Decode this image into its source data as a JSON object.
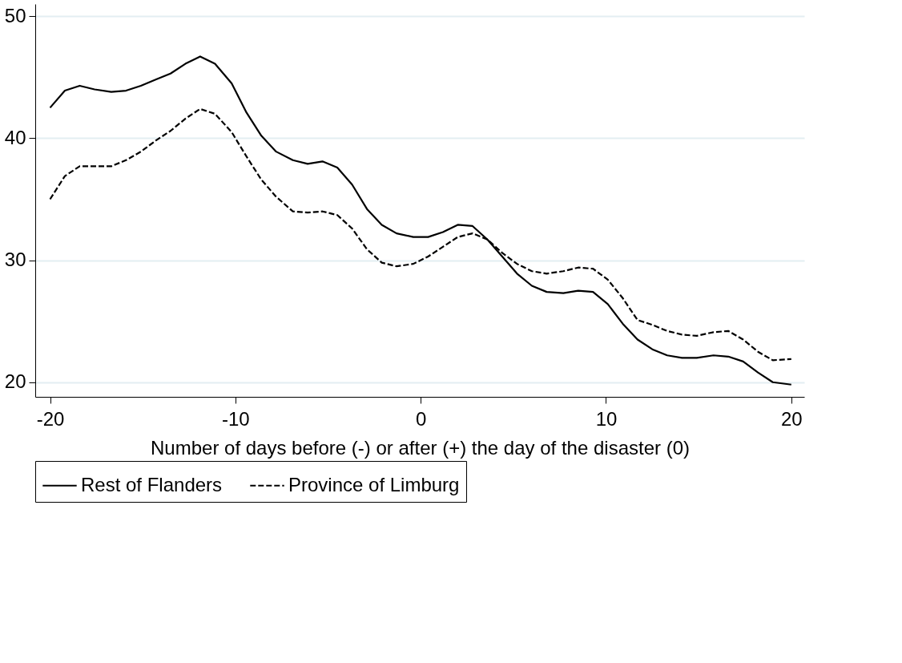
{
  "chart_data": {
    "type": "line",
    "xlabel": "Number of days before (-) or after (+) the day of the disaster (0)",
    "x": [
      -20,
      -19.2,
      -18.4,
      -17.6,
      -16.7,
      -15.9,
      -15.1,
      -14.3,
      -13.5,
      -12.7,
      -11.9,
      -11.1,
      -10.2,
      -9.4,
      -8.6,
      -7.8,
      -6.9,
      -6.1,
      -5.3,
      -4.5,
      -3.7,
      -2.9,
      -2.1,
      -1.3,
      -0.4,
      0.4,
      1.2,
      2.0,
      2.8,
      3.6,
      4.4,
      5.2,
      6.0,
      6.8,
      7.7,
      8.5,
      9.3,
      10.1,
      10.9,
      11.7,
      12.5,
      13.3,
      14.1,
      14.9,
      15.8,
      16.6,
      17.4,
      18.2,
      19.0,
      20
    ],
    "series": [
      {
        "name": "Rest of Flanders",
        "color": "#000000",
        "line_style": "solid",
        "values": [
          42.5,
          43.9,
          44.3,
          44.0,
          43.8,
          43.9,
          44.3,
          44.8,
          45.3,
          46.1,
          46.7,
          46.1,
          44.5,
          42.1,
          40.2,
          38.9,
          38.2,
          37.9,
          38.1,
          37.6,
          36.2,
          34.2,
          32.9,
          32.2,
          31.9,
          31.9,
          32.3,
          32.9,
          32.8,
          31.7,
          30.3,
          28.9,
          27.9,
          27.4,
          27.3,
          27.5,
          27.4,
          26.4,
          24.8,
          23.5,
          22.7,
          22.2,
          22.0,
          22.0,
          22.2,
          22.1,
          21.7,
          20.8,
          20.0,
          19.8
        ]
      },
      {
        "name": "Province of Limburg",
        "color": "#000000",
        "line_style": "dashed",
        "values": [
          35.0,
          36.9,
          37.7,
          37.7,
          37.7,
          38.2,
          38.9,
          39.8,
          40.6,
          41.6,
          42.4,
          42.0,
          40.5,
          38.5,
          36.6,
          35.2,
          34.0,
          33.9,
          34.0,
          33.7,
          32.6,
          30.9,
          29.8,
          29.5,
          29.7,
          30.3,
          31.1,
          31.9,
          32.2,
          31.7,
          30.6,
          29.7,
          29.1,
          28.9,
          29.1,
          29.4,
          29.3,
          28.4,
          26.9,
          25.1,
          24.7,
          24.2,
          23.9,
          23.8,
          24.1,
          24.2,
          23.5,
          22.5,
          21.8,
          21.9
        ]
      }
    ],
    "xlim": [
      -20.8,
      20.7
    ],
    "ylim": [
      18.8,
      51
    ],
    "xticks": [
      -20,
      -10,
      0,
      10,
      20
    ],
    "yticks": [
      20,
      30,
      40,
      50
    ],
    "grid": "y",
    "legend": "bottom",
    "marker": "none"
  }
}
